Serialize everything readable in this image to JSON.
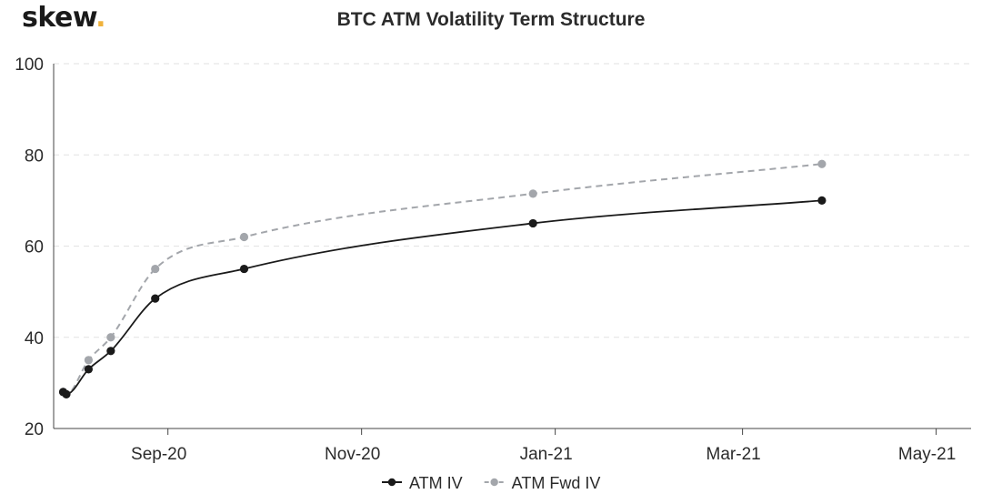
{
  "brand": {
    "name": "skew",
    "dot": ".",
    "accent": "#f0b23c"
  },
  "chart_data": {
    "type": "line",
    "title": "BTC ATM Volatility Term Structure",
    "xlabel": "",
    "ylabel": "",
    "ylim": [
      20,
      100
    ],
    "yticks": [
      20,
      40,
      60,
      80,
      100
    ],
    "xlim": [
      "2020-07-27",
      "2021-05-12"
    ],
    "xticks": [
      {
        "label": "Sep-20",
        "date": "2020-09-01"
      },
      {
        "label": "Nov-20",
        "date": "2020-11-01"
      },
      {
        "label": "Jan-21",
        "date": "2021-01-01"
      },
      {
        "label": "Mar-21",
        "date": "2021-03-01"
      },
      {
        "label": "May-21",
        "date": "2021-05-01"
      }
    ],
    "grid": true,
    "legend": "bottom",
    "series": [
      {
        "name": "ATM IV",
        "color": "#1a1a1a",
        "dashed": false,
        "points": [
          {
            "x": "2020-07-30",
            "y": 28.0
          },
          {
            "x": "2020-07-31",
            "y": 27.5
          },
          {
            "x": "2020-08-07",
            "y": 33.0
          },
          {
            "x": "2020-08-14",
            "y": 37.0
          },
          {
            "x": "2020-08-28",
            "y": 48.5
          },
          {
            "x": "2020-09-25",
            "y": 55.0
          },
          {
            "x": "2020-12-25",
            "y": 65.0
          },
          {
            "x": "2021-03-26",
            "y": 70.0
          }
        ]
      },
      {
        "name": "ATM Fwd IV",
        "color": "#a3a6ab",
        "dashed": true,
        "points": [
          {
            "x": "2020-07-30",
            "y": 28.0
          },
          {
            "x": "2020-07-31",
            "y": 27.5
          },
          {
            "x": "2020-08-07",
            "y": 35.0
          },
          {
            "x": "2020-08-14",
            "y": 40.0
          },
          {
            "x": "2020-08-28",
            "y": 55.0
          },
          {
            "x": "2020-09-25",
            "y": 62.0
          },
          {
            "x": "2020-12-25",
            "y": 71.5
          },
          {
            "x": "2021-03-26",
            "y": 78.0
          }
        ]
      }
    ]
  }
}
